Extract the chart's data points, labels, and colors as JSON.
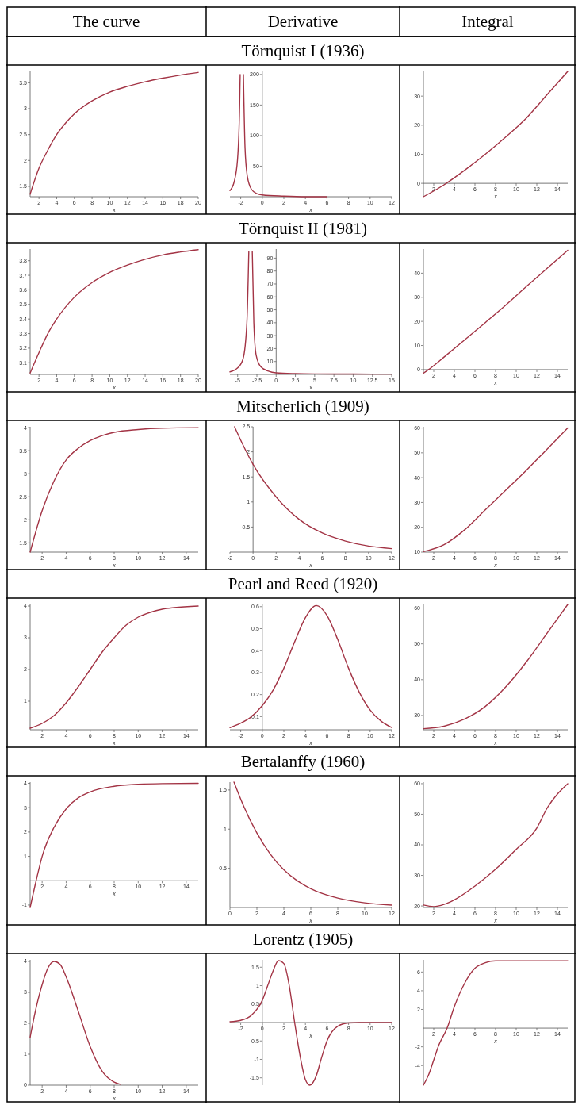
{
  "chart_data": [
    {
      "type": "other",
      "annotations": [
        "The curve",
        "Derivative",
        "Integral"
      ]
    },
    {
      "type": "line",
      "x": [
        1,
        2,
        3,
        4,
        5,
        6,
        8,
        10,
        12,
        14,
        16,
        18,
        20
      ],
      "series": [
        {
          "color": "#a33445",
          "values": [
            1.35,
            1.85,
            2.2,
            2.5,
            2.72,
            2.9,
            3.15,
            3.32,
            3.43,
            3.52,
            3.59,
            3.65,
            3.7
          ]
        }
      ],
      "xlim": [
        1,
        20
      ],
      "ylim": [
        1.3,
        3.72
      ],
      "xticks": [
        2,
        4,
        6,
        8,
        10,
        12,
        14,
        16,
        18,
        20
      ],
      "yticks": [
        1.5,
        2,
        2.5,
        3,
        3.5
      ],
      "xlabel": "x"
    },
    {
      "type": "line",
      "title": "Törnquist I (1936)",
      "x": [
        -3,
        -2.6,
        -2.3,
        -2.1,
        -2.05,
        -1.9,
        -1.75,
        -1.6,
        -1.4,
        -1,
        -0.5,
        0,
        2,
        4,
        6
      ],
      "series": [
        {
          "color": "#a33445",
          "values": [
            10,
            25,
            60,
            150,
            200,
            null,
            200,
            80,
            35,
            12,
            5,
            3,
            1,
            0,
            0
          ]
        }
      ],
      "xlim": [
        -3,
        12
      ],
      "ylim": [
        0,
        205
      ],
      "xticks": [
        -2,
        0,
        2,
        4,
        6,
        8,
        10,
        12
      ],
      "yticks": [
        50,
        100,
        150,
        200
      ],
      "xlabel": "x"
    },
    {
      "type": "line",
      "x": [
        1,
        3,
        5,
        7,
        9,
        11,
        13,
        15
      ],
      "series": [
        {
          "color": "#a33445",
          "values": [
            -4.6,
            -0.5,
            4.5,
            10,
            16,
            22.5,
            30.5,
            38.5
          ]
        }
      ],
      "xlim": [
        1,
        15
      ],
      "ylim": [
        -4.6,
        38.5
      ],
      "xticks": [
        2,
        4,
        6,
        8,
        10,
        12,
        14
      ],
      "yticks": [
        0,
        10,
        20,
        30
      ],
      "xlabel": "x"
    },
    {
      "type": "line",
      "x": [
        1,
        2,
        3,
        4,
        6,
        8,
        10,
        12,
        14,
        16,
        18,
        20
      ],
      "series": [
        {
          "color": "#a33445",
          "values": [
            3.03,
            3.17,
            3.3,
            3.4,
            3.55,
            3.65,
            3.72,
            3.77,
            3.81,
            3.84,
            3.86,
            3.876
          ]
        }
      ],
      "xlim": [
        1,
        20
      ],
      "ylim": [
        3.02,
        3.88
      ],
      "xticks": [
        2,
        4,
        6,
        8,
        10,
        12,
        14,
        16,
        18,
        20
      ],
      "yticks": [
        3.1,
        3.2,
        3.3,
        3.4,
        3.5,
        3.6,
        3.7,
        3.8
      ],
      "xlabel": "x"
    },
    {
      "type": "line",
      "title": "Törnquist II (1981)",
      "x": [
        -6,
        -5,
        -4.3,
        -3.8,
        -3.55,
        -3.3,
        -3.1,
        -2.9,
        -2.6,
        -2,
        -1,
        0,
        2.5,
        5,
        10,
        15
      ],
      "series": [
        {
          "color": "#a33445",
          "values": [
            2,
            5,
            12,
            40,
            95,
            null,
            95,
            40,
            15,
            6,
            2.5,
            1.2,
            0.6,
            0.4,
            0.3,
            0.2
          ]
        }
      ],
      "xlim": [
        -6,
        15
      ],
      "ylim": [
        0,
        97
      ],
      "xticks": [
        -5,
        -2.5,
        0,
        2.5,
        5,
        7.5,
        10,
        12.5,
        15
      ],
      "yticks": [
        10,
        20,
        30,
        40,
        50,
        60,
        70,
        80,
        90
      ],
      "xlabel": "x"
    },
    {
      "type": "line",
      "x": [
        1,
        1.5,
        3,
        5,
        7,
        9,
        11,
        13,
        15
      ],
      "series": [
        {
          "color": "#a33445",
          "values": [
            -1.5,
            0,
            5.2,
            12.3,
            19.5,
            26.8,
            34.5,
            42,
            49.5
          ]
        }
      ],
      "xlim": [
        1,
        15
      ],
      "ylim": [
        -2,
        50
      ],
      "xticks": [
        2,
        4,
        6,
        8,
        10,
        12,
        14
      ],
      "yticks": [
        0,
        10,
        20,
        30,
        40
      ],
      "xlabel": "x"
    },
    {
      "type": "line",
      "x": [
        1,
        2,
        3,
        4,
        5,
        6,
        7,
        8,
        10,
        12,
        15
      ],
      "series": [
        {
          "color": "#a33445",
          "values": [
            1.3,
            2.2,
            2.85,
            3.3,
            3.55,
            3.72,
            3.83,
            3.9,
            3.96,
            3.99,
            4.0
          ]
        }
      ],
      "xlim": [
        1,
        15
      ],
      "ylim": [
        1.3,
        4.02
      ],
      "xticks": [
        2,
        4,
        6,
        8,
        10,
        12,
        14
      ],
      "yticks": [
        1.5,
        2,
        2.5,
        3,
        3.5,
        4
      ],
      "xlabel": "x"
    },
    {
      "type": "line",
      "title": "Mitscherlich (1909)",
      "x": [
        -1.6,
        -1,
        0,
        2,
        4,
        6,
        8,
        10,
        12
      ],
      "series": [
        {
          "color": "#a33445",
          "values": [
            2.5,
            2.2,
            1.75,
            1.1,
            0.65,
            0.38,
            0.22,
            0.12,
            0.07
          ]
        }
      ],
      "xlim": [
        -2,
        12
      ],
      "ylim": [
        0,
        2.5
      ],
      "xticks": [
        -2,
        0,
        2,
        4,
        6,
        8,
        10,
        12
      ],
      "yticks": [
        0.5,
        1,
        1.5,
        2,
        2.5
      ],
      "xlabel": "x"
    },
    {
      "type": "line",
      "x": [
        1,
        3,
        5,
        7,
        9,
        11,
        13,
        15
      ],
      "series": [
        {
          "color": "#a33445",
          "values": [
            10.2,
            13,
            19,
            27,
            35,
            43,
            51.5,
            60
          ]
        }
      ],
      "xlim": [
        1,
        15
      ],
      "ylim": [
        10,
        60.5
      ],
      "xticks": [
        2,
        4,
        6,
        8,
        10,
        12,
        14
      ],
      "yticks": [
        10,
        20,
        30,
        40,
        50,
        60
      ],
      "xlabel": "x"
    },
    {
      "type": "line",
      "x": [
        1,
        2,
        3,
        4,
        5,
        6,
        7,
        8,
        9,
        10,
        11,
        12,
        13,
        15
      ],
      "series": [
        {
          "color": "#a33445",
          "values": [
            0.15,
            0.3,
            0.55,
            0.95,
            1.45,
            2.0,
            2.55,
            3.0,
            3.4,
            3.65,
            3.8,
            3.9,
            3.95,
            4.0
          ]
        }
      ],
      "xlim": [
        1,
        15
      ],
      "ylim": [
        0.1,
        4.05
      ],
      "xticks": [
        2,
        4,
        6,
        8,
        10,
        12,
        14
      ],
      "yticks": [
        1,
        2,
        3,
        4
      ],
      "xlabel": "x"
    },
    {
      "type": "line",
      "title": "Pearl and Reed (1920)",
      "x": [
        -3,
        -2,
        -1,
        0,
        1,
        2,
        3,
        4,
        5,
        6,
        7,
        8,
        9,
        10,
        11,
        12
      ],
      "series": [
        {
          "color": "#a33445",
          "values": [
            0.05,
            0.07,
            0.1,
            0.15,
            0.22,
            0.32,
            0.44,
            0.55,
            0.605,
            0.56,
            0.45,
            0.32,
            0.21,
            0.13,
            0.08,
            0.05
          ]
        }
      ],
      "xlim": [
        -3,
        12
      ],
      "ylim": [
        0.04,
        0.61
      ],
      "xticks": [
        -2,
        0,
        2,
        4,
        6,
        8,
        10,
        12
      ],
      "yticks": [
        0.1,
        0.2,
        0.3,
        0.4,
        0.5,
        0.6
      ],
      "xlabel": "x"
    },
    {
      "type": "line",
      "x": [
        1,
        3,
        5,
        7,
        9,
        11,
        13,
        15
      ],
      "series": [
        {
          "color": "#a33445",
          "values": [
            26.3,
            27,
            29,
            32.5,
            38,
            45,
            53,
            61
          ]
        }
      ],
      "xlim": [
        1,
        15
      ],
      "ylim": [
        26,
        61
      ],
      "xticks": [
        2,
        4,
        6,
        8,
        10,
        12,
        14
      ],
      "yticks": [
        30,
        40,
        50,
        60
      ],
      "xlabel": "x"
    },
    {
      "type": "line",
      "x": [
        1,
        1.5,
        2,
        3,
        4,
        5,
        6,
        8,
        10,
        12,
        15
      ],
      "series": [
        {
          "color": "#a33445",
          "values": [
            -1.1,
            0,
            1.0,
            2.2,
            2.95,
            3.4,
            3.65,
            3.88,
            3.96,
            3.99,
            4.0
          ]
        }
      ],
      "xlim": [
        1,
        15
      ],
      "ylim": [
        -1.1,
        4.05
      ],
      "xticks": [
        2,
        4,
        6,
        8,
        10,
        12,
        14
      ],
      "yticks": [
        -1,
        1,
        2,
        3,
        4
      ],
      "xlabel": "x"
    },
    {
      "type": "line",
      "title": "Bertalanffy (1960)",
      "x": [
        0.3,
        1,
        2,
        3,
        4,
        5,
        6,
        8,
        10,
        12
      ],
      "series": [
        {
          "color": "#a33445",
          "values": [
            1.6,
            1.3,
            0.95,
            0.68,
            0.48,
            0.34,
            0.24,
            0.12,
            0.06,
            0.03
          ]
        }
      ],
      "xlim": [
        0,
        12
      ],
      "ylim": [
        0,
        1.6
      ],
      "xticks": [
        0,
        2,
        4,
        6,
        8,
        10,
        12
      ],
      "yticks": [
        0.5,
        1,
        1.5
      ],
      "xlabel": "x"
    },
    {
      "type": "line",
      "x": [
        1,
        2,
        3,
        4,
        6,
        8,
        10,
        12,
        13,
        15
      ],
      "series": [
        {
          "color": "#a33445",
          "values": [
            20.3,
            19.8,
            20.5,
            22,
            26.5,
            32,
            38.5,
            45.5,
            52,
            60
          ]
        }
      ],
      "xlim": [
        1,
        15
      ],
      "ylim": [
        19.5,
        60.5
      ],
      "xticks": [
        2,
        4,
        6,
        8,
        10,
        12,
        14
      ],
      "yticks": [
        20,
        30,
        40,
        50,
        60
      ],
      "xlabel": "x"
    },
    {
      "type": "line",
      "x": [
        1,
        1.5,
        2,
        2.5,
        3,
        3.5,
        4,
        5,
        6,
        7,
        8,
        8.5
      ],
      "series": [
        {
          "color": "#a33445",
          "values": [
            1.55,
            2.5,
            3.25,
            3.8,
            4.0,
            3.9,
            3.5,
            2.4,
            1.25,
            0.45,
            0.1,
            0.03
          ]
        }
      ],
      "xlim": [
        1,
        15
      ],
      "ylim": [
        0,
        4.05
      ],
      "xticks": [
        2,
        4,
        6,
        8,
        10,
        12,
        14
      ],
      "yticks": [
        0,
        1,
        2,
        3,
        4
      ],
      "xlabel": "x"
    },
    {
      "type": "line",
      "title": "Lorentz (1905)",
      "x": [
        -3,
        -2,
        -1,
        0,
        0.5,
        1,
        1.5,
        2,
        2.5,
        3,
        3.5,
        4,
        4.4,
        5,
        5.5,
        6,
        7,
        8,
        9,
        12
      ],
      "series": [
        {
          "color": "#a33445",
          "values": [
            0.02,
            0.06,
            0.2,
            0.6,
            1.0,
            1.4,
            1.68,
            1.6,
            1.0,
            0,
            -0.9,
            -1.55,
            -1.7,
            -1.45,
            -0.95,
            -0.5,
            -0.1,
            -0.01,
            0,
            0
          ]
        }
      ],
      "xlim": [
        -3,
        12
      ],
      "ylim": [
        -1.7,
        1.7
      ],
      "xticks": [
        -2,
        0,
        2,
        4,
        6,
        8,
        10,
        12
      ],
      "yticks": [
        -1.5,
        -1,
        -0.5,
        0.5,
        1,
        1.5
      ],
      "xlabel": "x"
    },
    {
      "type": "line",
      "x": [
        1,
        1.5,
        2,
        2.5,
        3.3,
        4,
        5,
        6,
        7,
        8,
        10,
        15
      ],
      "series": [
        {
          "color": "#a33445",
          "values": [
            -6.1,
            -5,
            -3.4,
            -1.8,
            0,
            2.3,
            4.8,
            6.4,
            7.0,
            7.2,
            7.2,
            7.2
          ]
        }
      ],
      "xlim": [
        1,
        15
      ],
      "ylim": [
        -6.1,
        7.3
      ],
      "xticks": [
        2,
        4,
        6,
        8,
        10,
        12,
        14
      ],
      "yticks": [
        -4,
        -2,
        2,
        4,
        6
      ],
      "xlabel": "x"
    }
  ]
}
